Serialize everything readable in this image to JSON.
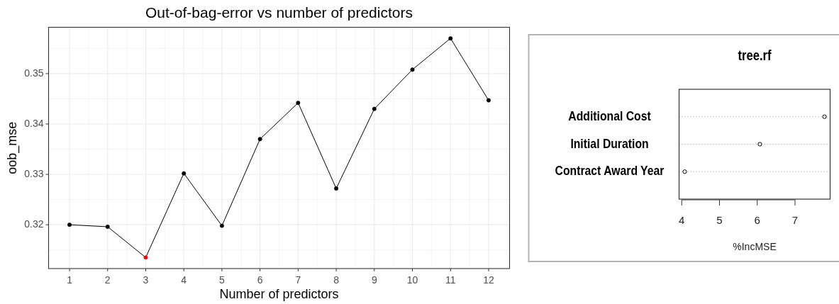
{
  "chart_data": [
    {
      "type": "line",
      "title": "Out-of-bag-error vs number of predictors",
      "xlabel": "Number of predictors",
      "ylabel": "oob_mse",
      "x": [
        1,
        2,
        3,
        4,
        5,
        6,
        7,
        8,
        9,
        10,
        11,
        12
      ],
      "series": [
        {
          "color": "#000000",
          "colors": [
            "#000000",
            "#000000",
            "#ff0000",
            "#000000",
            "#000000",
            "#000000",
            "#000000",
            "#000000",
            "#000000",
            "#000000",
            "#000000",
            "#000000"
          ],
          "values": [
            0.32,
            0.3196,
            0.3135,
            0.3302,
            0.3198,
            0.337,
            0.3442,
            0.3272,
            0.343,
            0.3508,
            0.357,
            0.3447
          ]
        }
      ],
      "xlim": [
        0.45,
        12.55
      ],
      "xticks": [
        1,
        {
          "value": 1.5,
          "label": null
        },
        2,
        {
          "value": 2.5,
          "label": null
        },
        3,
        {
          "value": 3.5,
          "label": null
        },
        4,
        {
          "value": 4.5,
          "label": null
        },
        5,
        {
          "value": 5.5,
          "label": null
        },
        6,
        {
          "value": 6.5,
          "label": null
        },
        7,
        {
          "value": 7.5,
          "label": null
        },
        8,
        {
          "value": 8.5,
          "label": null
        },
        9,
        {
          "value": 9.5,
          "label": null
        },
        10,
        {
          "value": 10.5,
          "label": null
        },
        11,
        {
          "value": 11.5,
          "label": null
        },
        12
      ],
      "ylim": [
        0.3113,
        0.3592
      ],
      "yticks": [
        {
          "value": 0.315,
          "label": null
        },
        0.32,
        {
          "value": 0.325,
          "label": null
        },
        0.33,
        {
          "value": 0.335,
          "label": null
        },
        0.34,
        {
          "value": 0.345,
          "label": null
        },
        0.35,
        {
          "value": 0.355,
          "label": null
        }
      ],
      "grid": true,
      "marker": "circle",
      "line_style": "solid"
    },
    {
      "type": "scatter",
      "orientation": "horizontal",
      "title": "tree.rf",
      "xlabel": "%IncMSE",
      "categories": [
        "Additional Cost",
        "Initial Duration",
        "Contract Award Year"
      ],
      "values": [
        7.78,
        6.07,
        4.08
      ],
      "color": "#000000",
      "xlim": [
        3.93,
        7.93
      ],
      "xticks": [
        4,
        5,
        6,
        7
      ],
      "grid": "y",
      "marker": "circle"
    }
  ]
}
